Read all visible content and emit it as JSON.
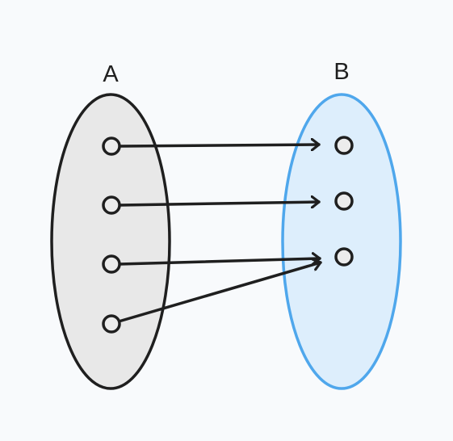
{
  "sets": [
    {
      "id": "A",
      "label": "A",
      "fill": "#e8e8e8",
      "stroke": "#1f1f1f",
      "elements": 4
    },
    {
      "id": "B",
      "label": "B",
      "fill": "#ddeefc",
      "stroke": "#4fa7ec",
      "elements": 3
    }
  ],
  "mapping": [
    {
      "from": 0,
      "to": 0
    },
    {
      "from": 1,
      "to": 1
    },
    {
      "from": 2,
      "to": 2
    },
    {
      "from": 3,
      "to": 2
    }
  ],
  "colors": {
    "background": "#f8fafc",
    "arrow": "#1f1f1f",
    "point_fill": "#ececec",
    "point_stroke": "#1f1f1f"
  }
}
